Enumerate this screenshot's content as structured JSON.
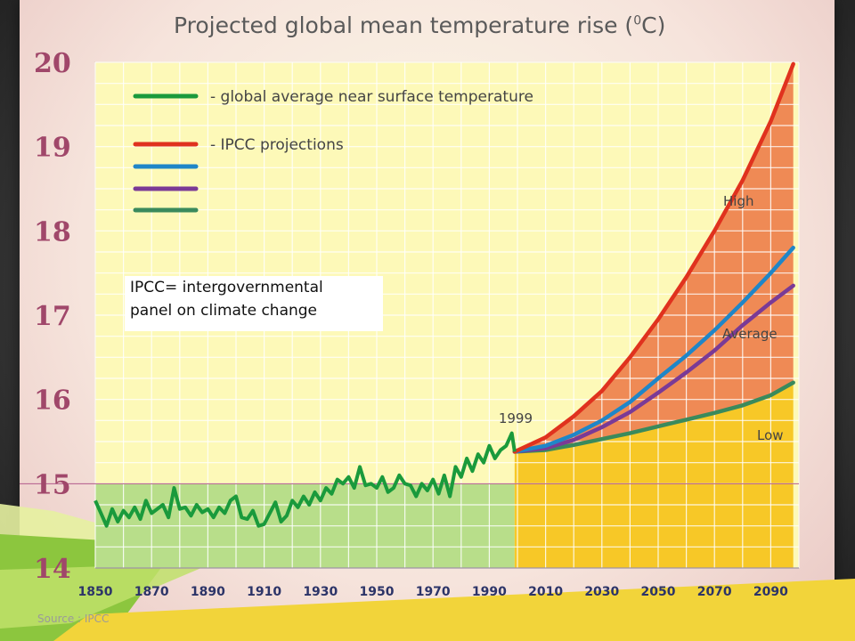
{
  "chart_data": {
    "type": "line",
    "title": "Projected global mean temperature rise (",
    "title_sup": "0",
    "title_suffix": "C)",
    "ylim": [
      14,
      20
    ],
    "xlim": [
      1850,
      2100
    ],
    "yticks": [
      "14",
      "15",
      "16",
      "17",
      "18",
      "19",
      "20"
    ],
    "xticks": [
      "1850",
      "1870",
      "1890",
      "1910",
      "1930",
      "1950",
      "1970",
      "1990",
      "2010",
      "2030",
      "2050",
      "2070",
      "2090"
    ],
    "grid": true,
    "reference_line": 15,
    "legend_position": "top-left",
    "legend": [
      {
        "label": "- global average near surface temperature",
        "color": "#1a9a3c"
      },
      {
        "label": "- IPCC projections",
        "color": "#e0321e"
      },
      {
        "label": "",
        "color": "#1f86c8"
      },
      {
        "label": "",
        "color": "#7a3a96"
      },
      {
        "label": "",
        "color": "#3a8a5c"
      }
    ],
    "annotations": {
      "year_marker": "1999",
      "high": "High",
      "average": "Average",
      "low": "Low"
    },
    "observed": {
      "x": [
        1850,
        1852,
        1854,
        1856,
        1858,
        1860,
        1862,
        1864,
        1866,
        1868,
        1870,
        1872,
        1874,
        1876,
        1878,
        1880,
        1882,
        1884,
        1886,
        1888,
        1890,
        1892,
        1894,
        1896,
        1898,
        1900,
        1902,
        1904,
        1906,
        1908,
        1910,
        1912,
        1914,
        1916,
        1918,
        1920,
        1922,
        1924,
        1926,
        1928,
        1930,
        1932,
        1934,
        1936,
        1938,
        1940,
        1942,
        1944,
        1946,
        1948,
        1950,
        1952,
        1954,
        1956,
        1958,
        1960,
        1962,
        1964,
        1966,
        1968,
        1970,
        1972,
        1974,
        1976,
        1978,
        1980,
        1982,
        1984,
        1986,
        1988,
        1990,
        1992,
        1994,
        1996,
        1998,
        1999
      ],
      "values": [
        14.8,
        14.65,
        14.5,
        14.7,
        14.55,
        14.68,
        14.6,
        14.72,
        14.58,
        14.8,
        14.65,
        14.7,
        14.75,
        14.6,
        14.95,
        14.7,
        14.72,
        14.62,
        14.75,
        14.66,
        14.7,
        14.6,
        14.72,
        14.65,
        14.8,
        14.85,
        14.6,
        14.58,
        14.68,
        14.5,
        14.52,
        14.65,
        14.78,
        14.55,
        14.62,
        14.8,
        14.72,
        14.85,
        14.75,
        14.9,
        14.8,
        14.95,
        14.88,
        15.05,
        15.0,
        15.08,
        14.95,
        15.2,
        14.98,
        15.0,
        14.95,
        15.08,
        14.9,
        14.95,
        15.1,
        15.0,
        14.98,
        14.85,
        15.0,
        14.92,
        15.05,
        14.88,
        15.1,
        14.85,
        15.2,
        15.08,
        15.3,
        15.15,
        15.35,
        15.25,
        15.45,
        15.3,
        15.4,
        15.45,
        15.6,
        15.38
      ]
    },
    "series": [
      {
        "name": "High",
        "x": [
          1999,
          2010,
          2020,
          2030,
          2040,
          2050,
          2060,
          2070,
          2080,
          2090,
          2098
        ],
        "values": [
          15.38,
          15.55,
          15.8,
          16.1,
          16.5,
          16.95,
          17.45,
          18.0,
          18.6,
          19.3,
          19.98
        ],
        "color": "#e0321e"
      },
      {
        "name": "Average",
        "x": [
          1999,
          2010,
          2020,
          2030,
          2040,
          2050,
          2060,
          2070,
          2080,
          2090,
          2098
        ],
        "values": [
          15.38,
          15.45,
          15.58,
          15.75,
          15.97,
          16.25,
          16.52,
          16.82,
          17.15,
          17.5,
          17.8
        ],
        "color": "#1f86c8"
      },
      {
        "name": "",
        "x": [
          1999,
          2010,
          2020,
          2030,
          2040,
          2050,
          2060,
          2070,
          2080,
          2090,
          2098
        ],
        "values": [
          15.38,
          15.42,
          15.52,
          15.67,
          15.85,
          16.08,
          16.32,
          16.58,
          16.88,
          17.15,
          17.35
        ],
        "color": "#7a3a96"
      },
      {
        "name": "Low",
        "x": [
          1999,
          2010,
          2020,
          2030,
          2040,
          2050,
          2060,
          2070,
          2080,
          2090,
          2098
        ],
        "values": [
          15.38,
          15.4,
          15.46,
          15.53,
          15.6,
          15.68,
          15.76,
          15.84,
          15.93,
          16.05,
          16.2
        ],
        "color": "#3a8a5c"
      }
    ],
    "colors": {
      "plot_bg": "#fdf9b8",
      "observed_fill": "#b8de8a",
      "future_fill": "#f7c827",
      "high_band": "#ef8a55",
      "grid": "#ffffff",
      "reference": "#b25a8c"
    }
  },
  "source": "Source : IPCC",
  "note": {
    "line1": "IPCC= intergovernmental",
    "line2": "panel on climate change"
  }
}
